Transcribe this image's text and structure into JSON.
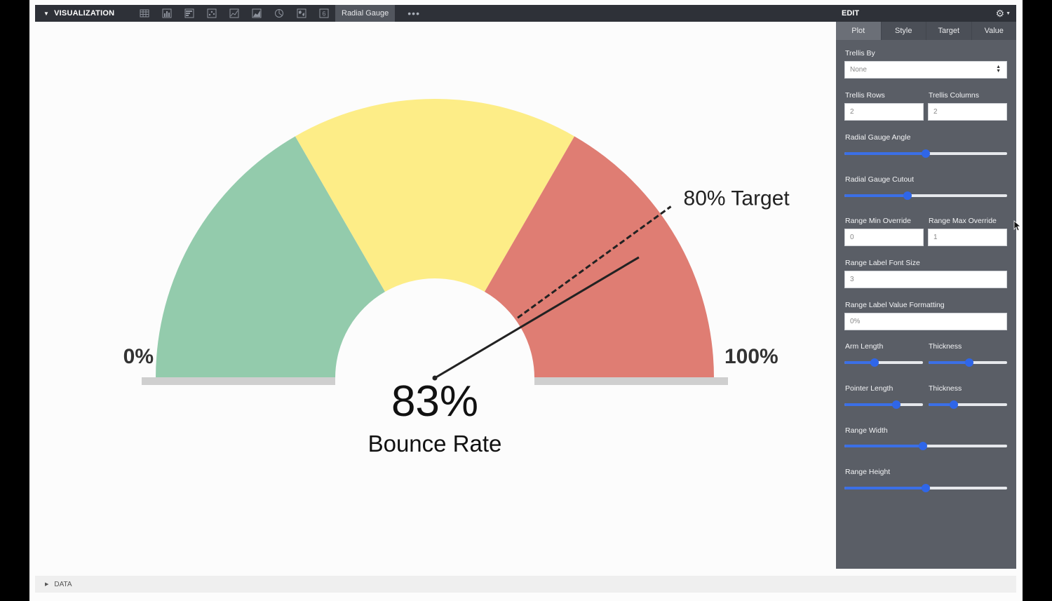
{
  "toolbar": {
    "title": "VISUALIZATION",
    "icons": [
      "table-icon",
      "bar-chart-icon",
      "horizontal-bar-icon",
      "scatter-icon",
      "line-chart-icon",
      "area-chart-icon",
      "pie-chart-icon",
      "map-icon",
      "single-value-icon"
    ],
    "single_value_glyph": "6",
    "active_tab": "Radial Gauge",
    "more": "•••"
  },
  "gauge": {
    "min_label": "0%",
    "max_label": "100%",
    "value_label": "83%",
    "value_caption": "Bounce Rate",
    "target_label": "80% Target",
    "value": 0.83,
    "target": 0.8,
    "range_min": 0,
    "range_max": 1,
    "bands": [
      {
        "from": 0.0,
        "to": 0.3333,
        "color": "#93cbac"
      },
      {
        "from": 0.3333,
        "to": 0.6667,
        "color": "#fded87"
      },
      {
        "from": 0.6667,
        "to": 1.0,
        "color": "#df7d73"
      }
    ],
    "baseline_color": "#cfcfcf"
  },
  "edit_panel": {
    "title": "EDIT",
    "tabs": [
      "Plot",
      "Style",
      "Target",
      "Value"
    ],
    "active_tab": "Plot",
    "trellis_by_label": "Trellis By",
    "trellis_by_value": "None",
    "trellis_rows_label": "Trellis Rows",
    "trellis_rows_value": "2",
    "trellis_columns_label": "Trellis Columns",
    "trellis_columns_value": "2",
    "gauge_angle_label": "Radial Gauge Angle",
    "gauge_angle_level": 0.5,
    "gauge_cutout_label": "Radial Gauge Cutout",
    "gauge_cutout_level": 0.38,
    "range_min_label": "Range Min Override",
    "range_min_value": "0",
    "range_max_label": "Range Max Override",
    "range_max_value": "1",
    "range_font_label": "Range Label Font Size",
    "range_font_value": "3",
    "range_format_label": "Range Label Value Formatting",
    "range_format_value": "0%",
    "arm_length_label": "Arm Length",
    "arm_length_level": 0.37,
    "arm_thickness_label": "Thickness",
    "arm_thickness_level": 0.52,
    "pointer_length_label": "Pointer Length",
    "pointer_length_level": 0.68,
    "pointer_thickness_label": "Thickness",
    "pointer_thickness_level": 0.3,
    "range_width_label": "Range Width",
    "range_width_level": 0.48,
    "range_height_label": "Range Height",
    "range_height_level": 0.5
  },
  "data_bar": {
    "label": "DATA"
  }
}
